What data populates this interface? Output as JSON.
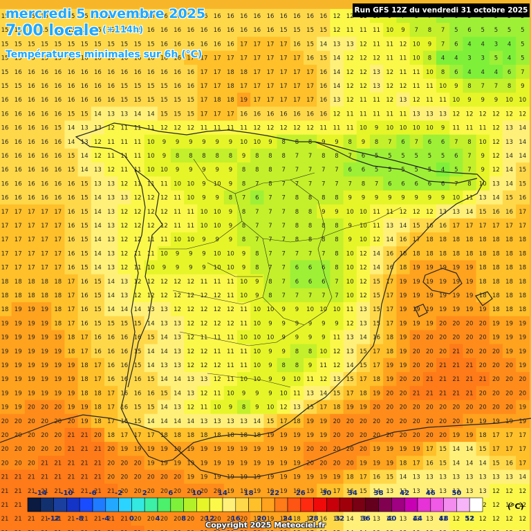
{
  "header": {
    "date": "mercredi 5 novembre 2025",
    "time": "7:00 locale",
    "lead": "(+114h)",
    "parameter": "Températures minimales sur 6h (°C)"
  },
  "run_label": "Run GFS 12Z du vendredi 31 octobre 2025",
  "copyright": "Copyright 2025 Meteociel.fr",
  "legend": {
    "unit": "(°C)",
    "top_labels": [
      "-14",
      "-10",
      "-6",
      "-2",
      "2",
      "6",
      "10",
      "14",
      "18",
      "22",
      "26",
      "30",
      "34",
      "38",
      "42",
      "46",
      "50"
    ],
    "bottom_labels": [
      "-12",
      "-8",
      "-4",
      "0",
      "4",
      "8",
      "12",
      "16",
      "20",
      "24",
      "28",
      "32",
      "36",
      "40",
      "44",
      "48",
      "52"
    ],
    "colors": [
      "#0a1a40",
      "#13306e",
      "#1a3f9e",
      "#1434c8",
      "#1a4cff",
      "#1f7bff",
      "#22a9ff",
      "#2ad4ff",
      "#33e8e0",
      "#3cf0a6",
      "#4cf06a",
      "#7ef03a",
      "#b4f028",
      "#e6f528",
      "#fbf84a",
      "#fff07a",
      "#ffd84a",
      "#ffc02a",
      "#ffa21e",
      "#ff7a18",
      "#ff5514",
      "#ff2a10",
      "#f00a0a",
      "#c8000a",
      "#a0000a",
      "#7a0014",
      "#64001e",
      "#820050",
      "#a00082",
      "#c800b4",
      "#e632d6",
      "#f05ae6",
      "#f48cf0",
      "#f8b4f8",
      "#ffffff"
    ]
  },
  "grid_rows": [
    "15 15 15 15 15 15 15 15 15 15 16 16 16 16 16 16 16 16 16 16 16 16 16 16 16 12 12 11 10 9 7 8 7 5 6 5 5 5 5 5",
    "15 15 15 15 15 15 15 15 15 15 15 16 16 16 16 16 16 16 16 16 16 15 15 15 15 12 11 11 11 10 9 7 8 7 5 6 5 5 5 5",
    "15 15 15 15 15 15 15 15 15 15 15 15 16 16 16 16 16 16 17 17 17 17 16 15 14 13 13 12 11 11 12 10 9 7 6 4 4 3 4 5",
    "15 15 15 15 15 15 16 16 16 16 16 16 16 16 17 17 17 17 17 17 17 17 17 16 15 14 12 12 12 11 11 10 8 4 4 3 3 5 4 5",
    "15 16 16 16 16 16 16 16 16 16 16 16 16 16 16 17 17 18 18 17 17 17 17 17 16 14 12 12 13 12 11 11 10 8 6 4 4 4 6 7",
    "15 15 16 16 16 16 16 16 16 15 15 15 15 16 16 17 17 18 17 17 17 17 17 17 16 14 12 12 13 12 12 11 11 10 9 8 7 7 8 9",
    "16 16 16 16 16 16 16 16 16 15 15 15 15 15 15 17 18 18 19 17 17 17 17 17 16 13 12 11 11 12 13 12 11 11 10 9 9 9 10 10",
    "16 16 16 16 16 15 15 14 13 13 14 14 15 15 15 17 17 17 16 16 16 16 16 16 16 12 11 11 11 11 11 13 13 13 12 12 12 12 12 12",
    "16 16 16 16 15 14 13 13 12 11 11 11 12 12 12 11 11 11 11 12 12 12 12 12 11 11 11 10 9 10 10 10 10 9 11 11 11 12 13 14",
    "16 16 16 16 16 14 13 12 11 11 11 10 9 9 9 9 9 9 10 10 9 8 8 8 9 9 8 9 8 7 6 7 6 6 7 8 10 12 13 14",
    "16 16 16 16 16 15 14 12 11 11 11 10 9 8 8 8 8 8 9 8 8 8 7 7 8 8 7 6 5 5 5 5 5 5 6 7 9 12 14 14",
    "16 16 16 16 16 15 14 13 12 11 11 10 10 9 9 9 9 9 8 8 8 7 7 7 7 7 6 6 5 5 5 5 5 4 5 7 9 12 14 15",
    "16 16 16 16 16 16 15 13 13 12 11 11 11 10 10 9 10 9 8 7 8 7 7 7 7 7 7 8 7 6 6 6 6 6 7 8 10 13 14 15",
    "16 16 16 16 16 16 15 14 13 13 12 12 12 11 10 9 9 8 7 6 7 7 8 8 8 8 9 9 9 9 9 9 9 9 10 11 13 14 15 16",
    "17 17 17 17 17 16 15 14 13 12 12 12 12 11 11 10 10 9 8 7 7 7 8 8 9 9 10 10 11 11 12 12 12 13 13 14 15 16 16 17",
    "17 17 17 17 17 16 15 14 13 12 12 12 12 11 11 10 10 9 8 7 7 7 8 8 8 8 9 10 11 13 14 15 16 16 17 17 17 17 17 17",
    "17 17 17 17 17 16 15 14 13 12 12 11 11 10 10 9 9 9 8 7 7 7 8 8 8 8 9 10 12 14 16 17 18 18 18 18 18 18 18 18",
    "17 17 17 17 17 16 15 14 13 12 11 11 10 9 9 9 10 10 9 8 7 7 7 7 7 8 10 12 14 16 18 18 18 18 18 18 18 18 18 18",
    "17 17 17 17 17 16 15 14 13 12 11 10 9 9 9 9 10 10 9 8 7 7 6 6 6 8 10 12 14 16 18 19 19 19 19 19 18 18 18 18",
    "18 18 18 18 18 17 16 15 14 13 12 12 12 12 12 11 11 11 10 9 8 7 6 6 6 7 10 12 15 17 19 19 19 19 19 19 18 18 18 18",
    "18 18 18 18 18 17 16 15 14 13 12 12 12 12 12 12 12 11 10 9 8 7 7 7 7 7 10 12 15 17 19 19 19 19 19 19 18 18 18 18",
    "18 19 19 19 18 17 16 15 14 14 14 13 13 12 12 12 12 12 11 10 10 9 9 10 10 10 11 13 15 17 19 19 19 19 19 19 19 18 18 18",
    "19 19 19 19 18 17 16 15 15 15 15 14 13 13 12 12 12 12 11 10 9 9 9 9 9 9 12 13 15 17 19 19 19 20 20 20 20 19 19 19",
    "19 19 19 19 19 18 17 16 16 16 16 15 14 13 12 11 11 11 10 10 10 9 9 9 9 11 13 14 16 18 19 20 20 20 20 20 20 19 19 19",
    "19 19 19 19 19 18 17 16 16 16 15 14 14 13 12 12 11 11 11 10 9 9 8 8 10 12 13 15 17 18 19 20 20 20 21 20 20 20 19 19",
    "19 19 19 19 19 19 18 17 16 16 15 14 13 13 12 12 12 11 11 10 9 8 8 9 11 12 14 15 17 19 19 20 20 21 21 21 20 20 20 19",
    "19 19 19 19 19 19 18 17 16 16 16 15 14 14 13 13 12 11 10 10 9 9 10 11 12 13 15 17 18 19 20 20 21 21 21 21 21 20 20 20",
    "19 19 19 19 19 19 18 18 17 16 16 16 15 14 13 12 11 10 9 9 9 10 11 13 14 15 17 18 19 20 20 21 21 21 21 21 20 20 20 20",
    "19 19 20 20 20 19 19 18 17 16 15 15 14 13 12 11 10 9 8 9 10 12 13 15 17 18 19 19 20 20 20 20 20 20 20 20 20 20 20 19",
    "20 20 20 20 20 20 19 18 17 16 15 14 14 14 14 13 13 13 13 14 15 17 18 19 19 20 20 20 20 20 20 20 20 20 20 19 19 19 19 19",
    "20 20 20 20 20 21 21 20 18 17 17 17 18 18 18 18 18 18 18 18 19 19 19 19 19 20 20 20 20 20 20 20 20 20 19 19 18 17 17 17",
    "20 20 20 20 20 21 21 21 20 19 19 19 19 19 19 19 19 19 19 19 19 19 19 20 20 20 20 20 19 19 19 19 17 15 14 14 15 17 17 17",
    "20 20 20 21 21 21 21 21 20 20 20 19 19 19 19 19 19 19 19 19 19 19 19 20 20 20 20 19 19 19 18 17 16 15 14 14 14 15 16 17",
    "21 21 21 21 21 21 21 21 20 20 20 20 20 20 19 19 19 19 19 19 19 19 19 19 19 19 18 17 16 15 14 13 13 13 13 13 13 13 13 14",
    "21 21 21 21 21 21 21 21 21 20 20 20 20 20 20 20 20 19 19 19 19 19 19 19 18 17 16 15 14 13 13 13 13 13 13 13 13 12 12 12",
    "21 21 21 21 21 21 21 21 21 20 20 20 20 20 20 20 20 20 19 19 19 19 19 18 17 16 15 14 13 13 13 13 13 13 13 12 12 12 12 12",
    "21 21 21 21 21 21 21 21 21 21 20 20 20 20 20 20 20 20 20 19 19 19 18 17 16 15 14 13 13 13 13 13 13 13 12 12 12 12 12 12",
    "21 21 21 21 21 21 21 21 21 21 21 20 20 20 20 20 20 20 20 20 19 19 18 17 16 15 14 14 13 13 13 13 13 13 12 12 12 12 12 12"
  ]
}
